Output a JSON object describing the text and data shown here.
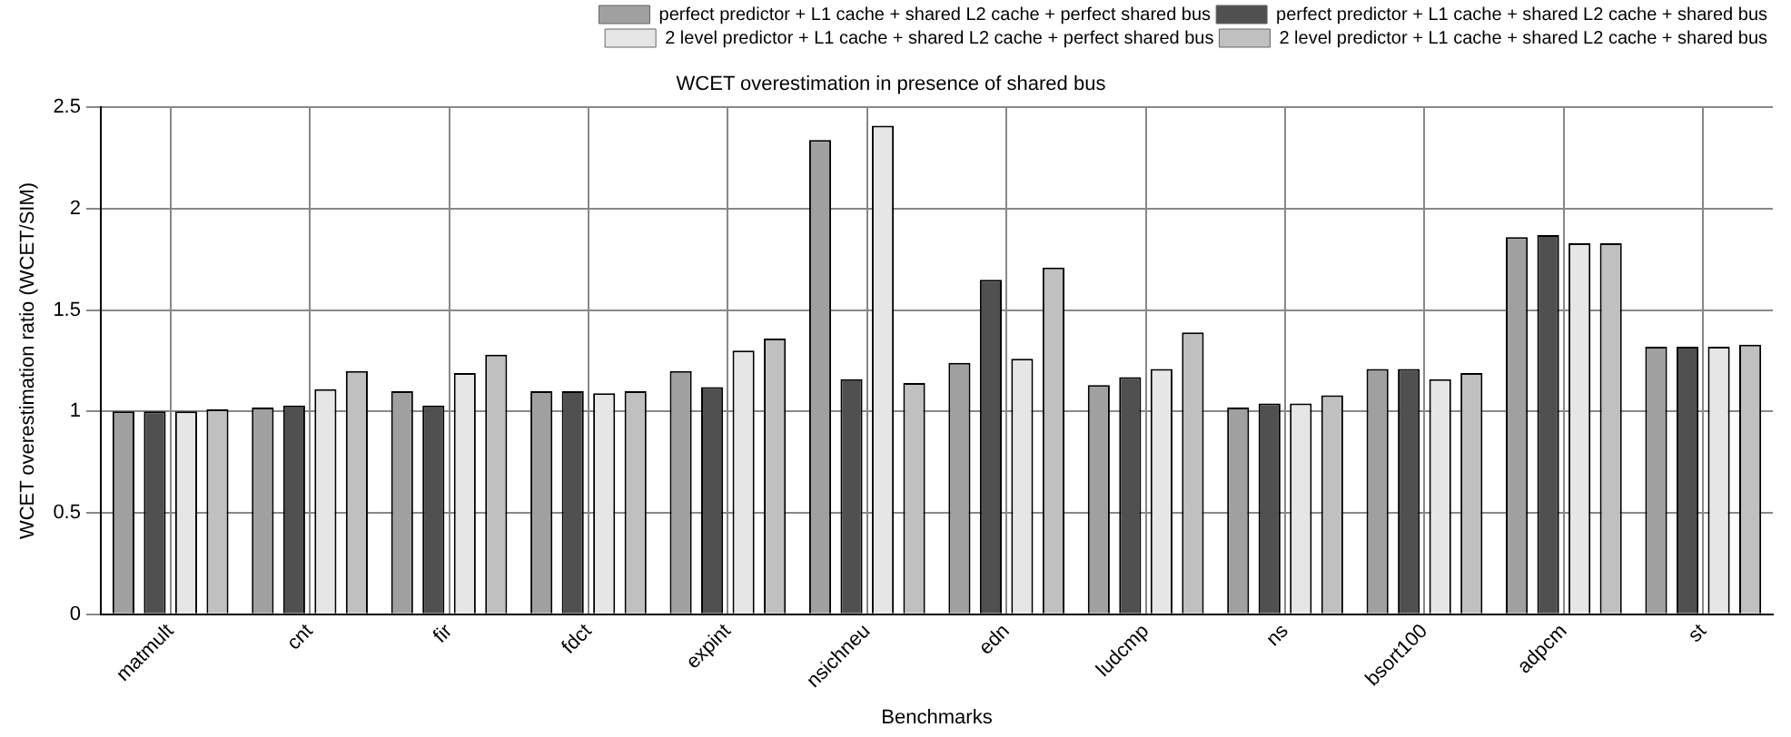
{
  "chart_data": {
    "type": "bar",
    "title": "WCET overestimation in presence of shared bus",
    "xlabel": "Benchmarks",
    "ylabel": "WCET overestimation ratio (WCET/SIM)",
    "categories": [
      "matmult",
      "cnt",
      "fir",
      "fdct",
      "expint",
      "nsichneu",
      "edn",
      "ludcmp",
      "ns",
      "bsort100",
      "adpcm",
      "st"
    ],
    "series": [
      {
        "name": "perfect predictor + L1 cache + shared L2 cache + perfect shared bus",
        "color": "#a0a0a0",
        "values": [
          1.0,
          1.02,
          1.1,
          1.1,
          1.2,
          2.34,
          1.24,
          1.13,
          1.02,
          1.21,
          1.86,
          1.32
        ]
      },
      {
        "name": "perfect predictor + L1 cache + shared L2 cache + shared bus",
        "color": "#505050",
        "values": [
          1.0,
          1.03,
          1.03,
          1.1,
          1.12,
          1.16,
          1.65,
          1.17,
          1.04,
          1.21,
          1.87,
          1.32
        ]
      },
      {
        "name": "2 level predictor + L1 cache + shared L2 cache + perfect shared bus",
        "color": "#e6e6e6",
        "values": [
          1.0,
          1.11,
          1.19,
          1.09,
          1.3,
          2.41,
          1.26,
          1.21,
          1.04,
          1.16,
          1.83,
          1.32
        ]
      },
      {
        "name": "2 level predictor + L1 cache + shared L2 cache + shared bus",
        "color": "#c0c0c0",
        "values": [
          1.01,
          1.2,
          1.28,
          1.1,
          1.36,
          1.14,
          1.71,
          1.39,
          1.08,
          1.19,
          1.83,
          1.33
        ]
      }
    ],
    "ylim": [
      0,
      2.5
    ],
    "yticks": [
      0,
      0.5,
      1,
      1.5,
      2,
      2.5
    ],
    "grid": true,
    "legend": "top right"
  }
}
